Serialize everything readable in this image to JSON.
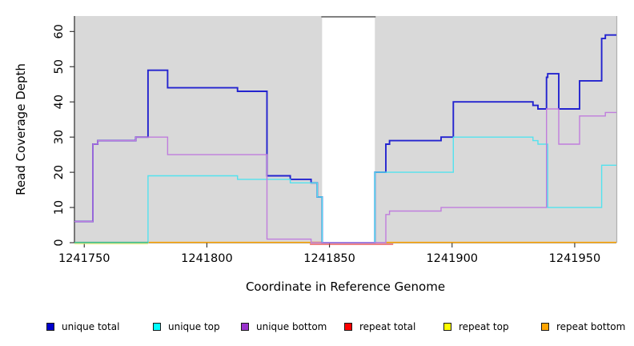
{
  "chart_data": {
    "type": "line",
    "subtype": "step-coverage-plot",
    "title": "",
    "xlabel": "Coordinate in Reference Genome",
    "ylabel": "Read Coverage Depth",
    "xlim": [
      1241746,
      1241967
    ],
    "ylim": [
      0,
      64.4
    ],
    "x_ticks": [
      1241750,
      1241800,
      1241850,
      1241900,
      1241950
    ],
    "y_ticks": [
      0,
      10,
      20,
      30,
      40,
      50,
      60
    ],
    "grid": "off",
    "plot_background": "#d9d9d9",
    "gap_region": {
      "x1": 1241847,
      "x2": 1241868.5,
      "fill": "#ffffff",
      "top_border_color": "#6e6e6e"
    },
    "axis_color": "#2b2b2b",
    "legend_position": "bottom",
    "series": [
      {
        "name": "unique total",
        "color": "#2323cf",
        "legend_color": "#0000CD",
        "width": 1.9,
        "points": [
          [
            1241746,
            6
          ],
          [
            1241753.5,
            28
          ],
          [
            1241755.5,
            29
          ],
          [
            1241771,
            30
          ],
          [
            1241776,
            49
          ],
          [
            1241784,
            44
          ],
          [
            1241812.5,
            43
          ],
          [
            1241824.5,
            19
          ],
          [
            1241834,
            18
          ],
          [
            1241842.5,
            17
          ],
          [
            1241845,
            13
          ],
          [
            1241847,
            0
          ],
          [
            1241868.5,
            20
          ],
          [
            1241873,
            28
          ],
          [
            1241874.5,
            29
          ],
          [
            1241895.5,
            30
          ],
          [
            1241900.5,
            40
          ],
          [
            1241933,
            39
          ],
          [
            1241935,
            38
          ],
          [
            1241938.5,
            47
          ],
          [
            1241939,
            48
          ],
          [
            1241943.5,
            38
          ],
          [
            1241952,
            46
          ],
          [
            1241961,
            58
          ],
          [
            1241962.5,
            59
          ],
          [
            1241967,
            59
          ]
        ]
      },
      {
        "name": "unique top",
        "color": "#53e2ee",
        "legend_color": "#00FFFF",
        "width": 1.4,
        "points": [
          [
            1241746,
            0
          ],
          [
            1241776,
            19
          ],
          [
            1241812.5,
            18
          ],
          [
            1241834,
            17
          ],
          [
            1241845,
            13
          ],
          [
            1241847,
            0
          ],
          [
            1241868.5,
            20
          ],
          [
            1241900.5,
            30
          ],
          [
            1241933,
            29
          ],
          [
            1241935,
            28
          ],
          [
            1241939,
            10
          ],
          [
            1241961,
            22
          ],
          [
            1241967,
            22
          ]
        ]
      },
      {
        "name": "unique bottom",
        "color": "#c07ddd",
        "legend_color": "#9932CC",
        "width": 1.4,
        "points": [
          [
            1241746,
            6
          ],
          [
            1241753.5,
            28
          ],
          [
            1241755.5,
            29
          ],
          [
            1241771,
            30
          ],
          [
            1241784,
            25
          ],
          [
            1241824.5,
            1
          ],
          [
            1241842.5,
            0
          ],
          [
            1241873,
            8
          ],
          [
            1241874.5,
            9
          ],
          [
            1241895.5,
            10
          ],
          [
            1241938.5,
            38
          ],
          [
            1241943.5,
            28
          ],
          [
            1241952,
            36
          ],
          [
            1241962.5,
            37
          ],
          [
            1241967,
            37
          ]
        ]
      },
      {
        "name": "repeat total",
        "color": "#e23b3f",
        "legend_color": "#FF0000",
        "width": 1.3,
        "points": [
          [
            1241746,
            0
          ],
          [
            1241967,
            0
          ]
        ]
      },
      {
        "name": "repeat top",
        "color": "#f0e14e",
        "legend_color": "#FFFF00",
        "width": 1.2,
        "points": [
          [
            1241746,
            0
          ],
          [
            1241967,
            0
          ]
        ]
      },
      {
        "name": "repeat bottom",
        "color": "#FFA500",
        "legend_color": "#FFA500",
        "width": 1.5,
        "points": [
          [
            1241746,
            0
          ],
          [
            1241967,
            0
          ]
        ]
      }
    ],
    "baseline_overlays": [
      {
        "id": "repeat-top-visible",
        "color": "#f0e14e",
        "x1": 1241746,
        "x2": 1241776,
        "dy": 1.6,
        "width": 1.2,
        "layer": "pre"
      },
      {
        "id": "repeat-total-below",
        "color": "#e23b3f",
        "x1": 1241842,
        "x2": 1241876,
        "dy": 2.4,
        "width": 1.3,
        "layer": "pre"
      },
      {
        "id": "repeat-total-baseline",
        "color": "#d94050",
        "x1": 1241842.5,
        "x2": 1241847,
        "dy": 0,
        "width": 1.5,
        "layer": "pre"
      },
      {
        "id": "repeat-bottom-left",
        "color": "#FFA500",
        "x1": 1241776,
        "x2": 1241847,
        "dy": 0,
        "width": 1.5,
        "layer": "pre"
      },
      {
        "id": "repeat-bottom-right",
        "color": "#FFA500",
        "x1": 1241873,
        "x2": 1241967,
        "dy": 0,
        "width": 1.5,
        "layer": "pre"
      },
      {
        "id": "unique-top-zero-blend",
        "color": "#46b97b",
        "x1": 1241746,
        "x2": 1241776,
        "dy": 0,
        "width": 1.4,
        "layer": "post-cyan"
      }
    ]
  },
  "legend": {
    "items": [
      {
        "label": "unique total"
      },
      {
        "label": "unique top"
      },
      {
        "label": "unique bottom"
      },
      {
        "label": "repeat total"
      },
      {
        "label": "repeat top"
      },
      {
        "label": "repeat bottom"
      }
    ]
  }
}
